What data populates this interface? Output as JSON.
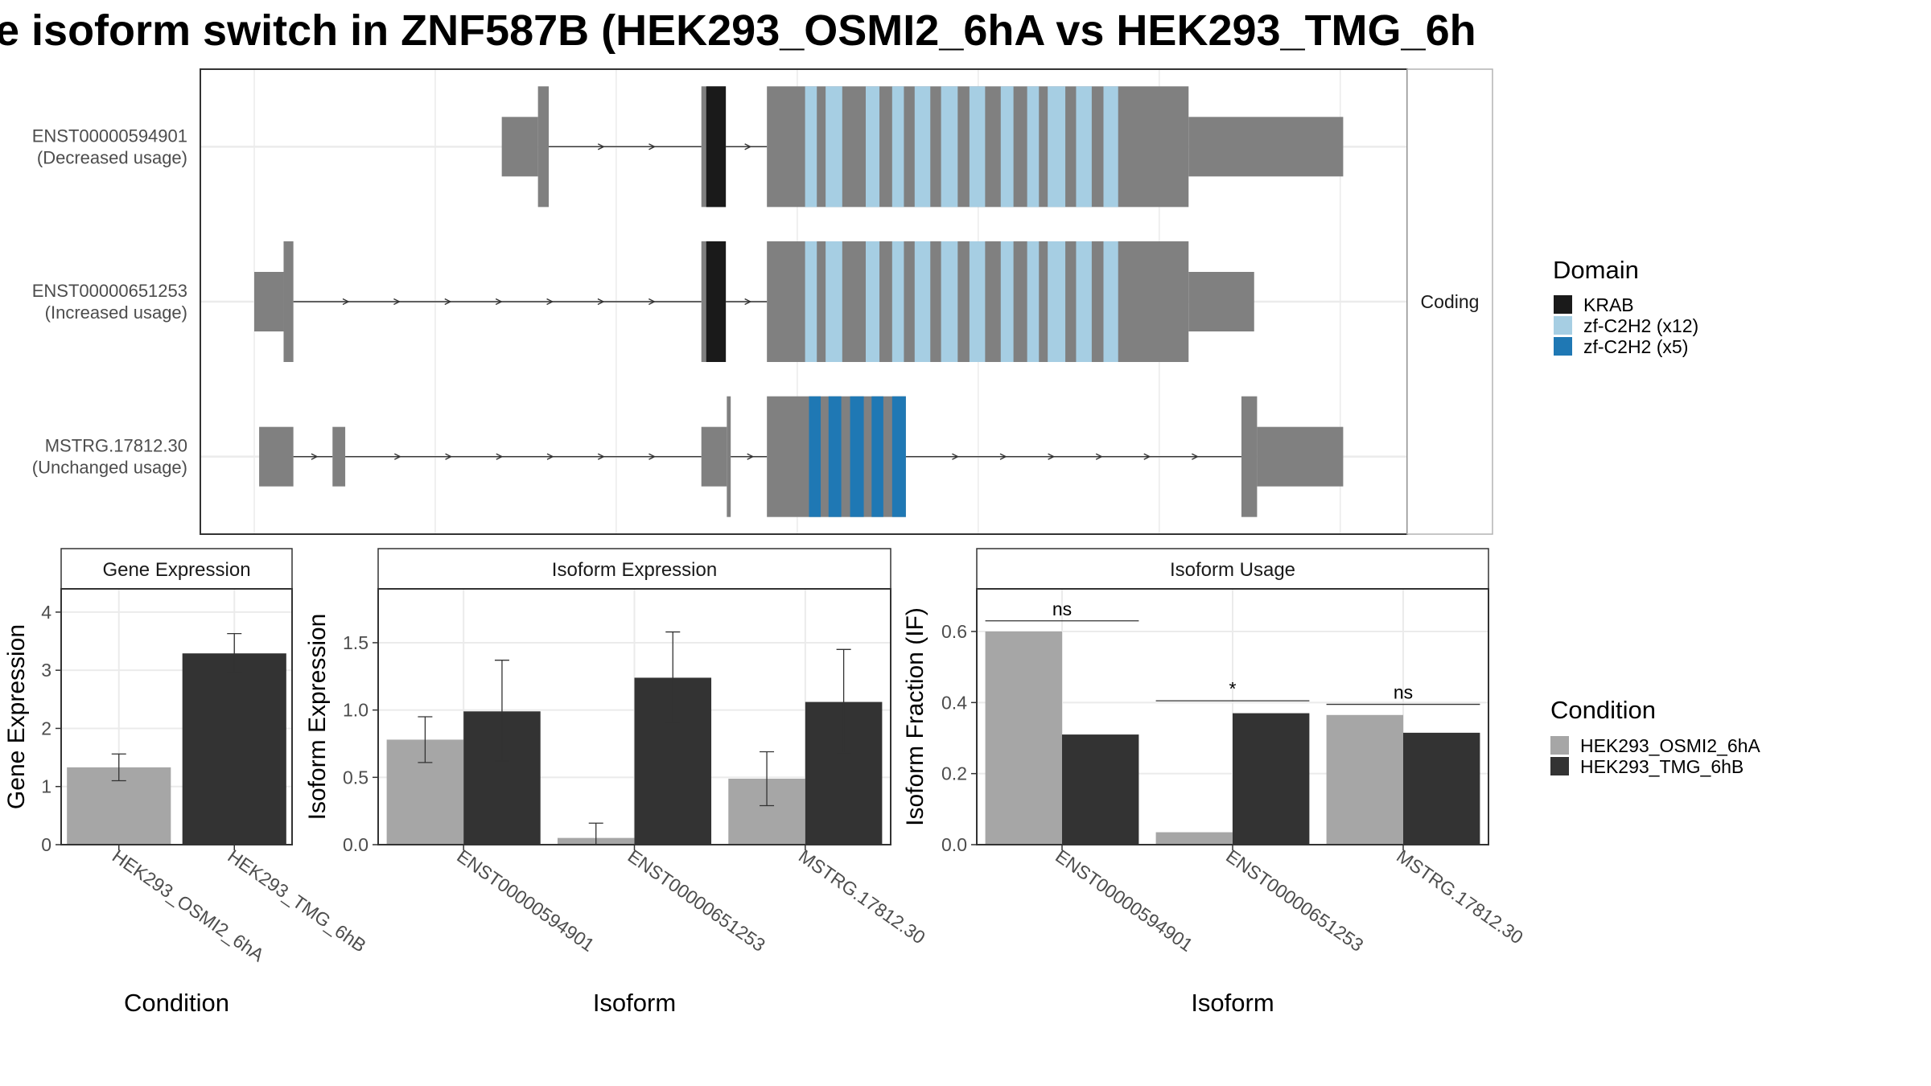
{
  "title": "e isoform switch in ZNF587B (HEK293_OSMI2_6hA vs HEK293_TMG_6h",
  "colors": {
    "exon": "#808080",
    "krab": "#1a1a1a",
    "zf12": "#a6cee3",
    "zf5": "#1f78b4",
    "cond_a": "#a6a6a6",
    "cond_b": "#333333",
    "grid": "#ebebeb",
    "strip_fill": "#ffffff"
  },
  "chart_data": [
    {
      "type": "gene-structure",
      "facet_label": "Coding",
      "isoforms": [
        {
          "id": "ENST00000594901",
          "usage_label": "(Decreased usage)",
          "exons": [
            {
              "start": 0.253,
              "end": 0.29,
              "kind": "utr"
            },
            {
              "start": 0.29,
              "end": 0.301,
              "kind": "cds"
            },
            {
              "start": 0.457,
              "end": 0.482,
              "kind": "cds"
            },
            {
              "start": 0.524,
              "end": 0.955,
              "kind": "cds"
            },
            {
              "start": 0.955,
              "end": 1.113,
              "kind": "utr"
            }
          ],
          "domains": [
            {
              "start": 0.462,
              "end": 0.482,
              "type": "KRAB"
            },
            {
              "start": 0.563,
              "end": 0.575,
              "type": "zf12"
            },
            {
              "start": 0.584,
              "end": 0.601,
              "type": "zf12"
            },
            {
              "start": 0.625,
              "end": 0.639,
              "type": "zf12"
            },
            {
              "start": 0.652,
              "end": 0.664,
              "type": "zf12"
            },
            {
              "start": 0.675,
              "end": 0.691,
              "type": "zf12"
            },
            {
              "start": 0.702,
              "end": 0.719,
              "type": "zf12"
            },
            {
              "start": 0.731,
              "end": 0.747,
              "type": "zf12"
            },
            {
              "start": 0.763,
              "end": 0.776,
              "type": "zf12"
            },
            {
              "start": 0.79,
              "end": 0.802,
              "type": "zf12"
            },
            {
              "start": 0.811,
              "end": 0.829,
              "type": "zf12"
            },
            {
              "start": 0.84,
              "end": 0.856,
              "type": "zf12"
            },
            {
              "start": 0.868,
              "end": 0.883,
              "type": "zf12"
            }
          ]
        },
        {
          "id": "ENST00000651253",
          "usage_label": "(Increased usage)",
          "exons": [
            {
              "start": 0.0,
              "end": 0.03,
              "kind": "utr"
            },
            {
              "start": 0.03,
              "end": 0.04,
              "kind": "cds"
            },
            {
              "start": 0.457,
              "end": 0.482,
              "kind": "cds"
            },
            {
              "start": 0.524,
              "end": 0.955,
              "kind": "cds"
            },
            {
              "start": 0.955,
              "end": 1.022,
              "kind": "utr"
            }
          ],
          "domains": [
            {
              "start": 0.462,
              "end": 0.482,
              "type": "KRAB"
            },
            {
              "start": 0.563,
              "end": 0.575,
              "type": "zf12"
            },
            {
              "start": 0.584,
              "end": 0.601,
              "type": "zf12"
            },
            {
              "start": 0.625,
              "end": 0.639,
              "type": "zf12"
            },
            {
              "start": 0.652,
              "end": 0.664,
              "type": "zf12"
            },
            {
              "start": 0.675,
              "end": 0.691,
              "type": "zf12"
            },
            {
              "start": 0.702,
              "end": 0.719,
              "type": "zf12"
            },
            {
              "start": 0.731,
              "end": 0.747,
              "type": "zf12"
            },
            {
              "start": 0.763,
              "end": 0.776,
              "type": "zf12"
            },
            {
              "start": 0.79,
              "end": 0.802,
              "type": "zf12"
            },
            {
              "start": 0.811,
              "end": 0.829,
              "type": "zf12"
            },
            {
              "start": 0.84,
              "end": 0.856,
              "type": "zf12"
            },
            {
              "start": 0.868,
              "end": 0.883,
              "type": "zf12"
            }
          ]
        },
        {
          "id": "MSTRG.17812.30",
          "usage_label": "(Unchanged usage)",
          "exons": [
            {
              "start": 0.005,
              "end": 0.04,
              "kind": "utr"
            },
            {
              "start": 0.08,
              "end": 0.093,
              "kind": "utr"
            },
            {
              "start": 0.457,
              "end": 0.483,
              "kind": "utr"
            },
            {
              "start": 0.483,
              "end": 0.487,
              "kind": "cds"
            },
            {
              "start": 0.524,
              "end": 0.666,
              "kind": "cds"
            },
            {
              "start": 1.009,
              "end": 1.025,
              "kind": "cds"
            },
            {
              "start": 1.025,
              "end": 1.113,
              "kind": "utr"
            }
          ],
          "domains": [
            {
              "start": 0.567,
              "end": 0.579,
              "type": "zf5"
            },
            {
              "start": 0.587,
              "end": 0.6,
              "type": "zf5"
            },
            {
              "start": 0.609,
              "end": 0.623,
              "type": "zf5"
            },
            {
              "start": 0.631,
              "end": 0.643,
              "type": "zf5"
            },
            {
              "start": 0.652,
              "end": 0.666,
              "type": "zf5"
            }
          ]
        }
      ],
      "legend": {
        "title": "Domain",
        "entries": [
          {
            "label": "KRAB",
            "type": "krab"
          },
          {
            "label": "zf-C2H2 (x12)",
            "type": "zf12"
          },
          {
            "label": "zf-C2H2 (x5)",
            "type": "zf5"
          }
        ]
      }
    },
    {
      "type": "bar",
      "strip": "Gene Expression",
      "xlabel": "Condition",
      "ylabel": "Gene Expression",
      "ylim": [
        0,
        4.4
      ],
      "yticks": [
        0,
        1,
        2,
        3,
        4
      ],
      "categories": [
        "HEK293_OSMI2_6hA",
        "HEK293_TMG_6hB"
      ],
      "values": [
        1.33,
        3.29
      ],
      "err_low": [
        1.1,
        2.95
      ],
      "err_high": [
        1.56,
        3.63
      ]
    },
    {
      "type": "bar",
      "strip": "Isoform Expression",
      "xlabel": "Isoform",
      "ylabel": "Isoform Expression",
      "ylim": [
        0,
        1.9
      ],
      "yticks": [
        0.0,
        0.5,
        1.0,
        1.5
      ],
      "ytick_labels": [
        "0.0",
        "0.5",
        "1.0",
        "1.5"
      ],
      "categories": [
        "ENST00000594901",
        "ENST00000651253",
        "MSTRG.17812.30"
      ],
      "series": [
        {
          "name": "HEK293_OSMI2_6hA",
          "values": [
            0.78,
            0.05,
            0.49
          ],
          "err_low": [
            0.61,
            0.0,
            0.29
          ],
          "err_high": [
            0.95,
            0.16,
            0.69
          ]
        },
        {
          "name": "HEK293_TMG_6hB",
          "values": [
            0.99,
            1.24,
            1.06
          ],
          "err_low": [
            0.62,
            0.91,
            0.68
          ],
          "err_high": [
            1.37,
            1.58,
            1.45
          ]
        }
      ]
    },
    {
      "type": "bar",
      "strip": "Isoform Usage",
      "xlabel": "Isoform",
      "ylabel": "Isoform Fraction (IF)",
      "ylim": [
        0,
        0.72
      ],
      "yticks": [
        0.0,
        0.2,
        0.4,
        0.6
      ],
      "ytick_labels": [
        "0.0",
        "0.2",
        "0.4",
        "0.6"
      ],
      "categories": [
        "ENST00000594901",
        "ENST00000651253",
        "MSTRG.17812.30"
      ],
      "series": [
        {
          "name": "HEK293_OSMI2_6hA",
          "values": [
            0.6,
            0.035,
            0.365
          ]
        },
        {
          "name": "HEK293_TMG_6hB",
          "values": [
            0.31,
            0.37,
            0.315
          ]
        }
      ],
      "annotations": [
        {
          "category": 0,
          "label": "ns",
          "y": 0.63
        },
        {
          "category": 1,
          "label": "*",
          "y": 0.405
        },
        {
          "category": 2,
          "label": "ns",
          "y": 0.395
        }
      ],
      "legend": {
        "title": "Condition",
        "entries": [
          "HEK293_OSMI2_6hA",
          "HEK293_TMG_6hB"
        ]
      }
    }
  ]
}
